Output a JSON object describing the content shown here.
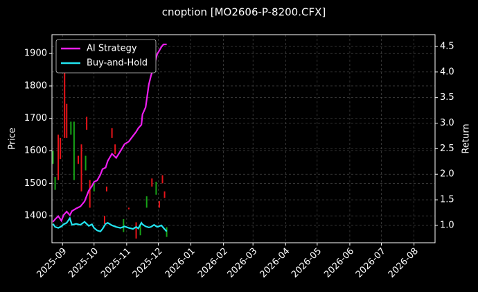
{
  "chart_data": {
    "type": "candlestick",
    "title": "cnoption [MO2606-P-8200.CFX]",
    "ylabel": "Price",
    "y2label": "Return",
    "up_color": "#e8141a",
    "down_color": "#17a317",
    "candles": {
      "x": [
        20323,
        20325,
        20328,
        20330,
        20334,
        20336,
        20340,
        20343,
        20347,
        20350,
        20354,
        20355,
        20358,
        20362,
        20372,
        20374,
        20379,
        20382,
        20390,
        20395,
        20402,
        20406,
        20412,
        20417,
        20421,
        20424,
        20427,
        20429,
        20431
      ],
      "open": [
        1600,
        1520,
        1510,
        1575,
        1640,
        1640,
        1690,
        1690,
        1560,
        1475,
        1585,
        1665,
        1425,
        1500,
        1375,
        1475,
        1640,
        1590,
        1390,
        1420,
        1330,
        1370,
        1460,
        1490,
        1505,
        1425,
        1500,
        1455,
        1365
      ],
      "close": [
        1560,
        1480,
        1650,
        1640,
        1840,
        1745,
        1650,
        1510,
        1585,
        1620,
        1540,
        1705,
        1510,
        1475,
        1400,
        1490,
        1670,
        1620,
        1350,
        1425,
        1380,
        1340,
        1425,
        1515,
        1465,
        1445,
        1525,
        1475,
        1335
      ]
    },
    "series": [
      {
        "name": "AI Strategy",
        "color": "#ee1ef0",
        "axis": "y2",
        "x": [
          20323,
          20325,
          20328,
          20331,
          20333,
          20336,
          20339,
          20341,
          20345,
          20349,
          20353,
          20357,
          20360,
          20362,
          20365,
          20368,
          20370,
          20373,
          20375,
          20379,
          20383,
          20387,
          20391,
          20395,
          20399,
          20402,
          20404,
          20407,
          20408,
          20411,
          20414,
          20416,
          20419,
          20422,
          20426,
          20428,
          20431
        ],
        "values": [
          1.07,
          1.12,
          1.18,
          1.09,
          1.2,
          1.27,
          1.2,
          1.28,
          1.33,
          1.37,
          1.47,
          1.68,
          1.77,
          1.85,
          1.88,
          1.99,
          2.1,
          2.13,
          2.26,
          2.4,
          2.32,
          2.45,
          2.59,
          2.64,
          2.75,
          2.83,
          2.9,
          2.97,
          3.17,
          3.31,
          3.75,
          3.92,
          4.12,
          4.35,
          4.49,
          4.54,
          4.54
        ]
      },
      {
        "name": "Buy-and-Hold",
        "color": "#22e4f0",
        "axis": "y2",
        "x": [
          20323,
          20325,
          20328,
          20331,
          20333,
          20336,
          20339,
          20341,
          20345,
          20349,
          20353,
          20357,
          20360,
          20362,
          20365,
          20368,
          20370,
          20373,
          20375,
          20379,
          20383,
          20387,
          20391,
          20395,
          20399,
          20402,
          20404,
          20407,
          20408,
          20411,
          20414,
          20416,
          20419,
          20422,
          20426,
          20428,
          20431
        ],
        "values": [
          1.03,
          0.97,
          0.95,
          0.98,
          1.02,
          1.05,
          1.14,
          1.01,
          1.03,
          1.01,
          1.07,
          0.99,
          1.02,
          0.95,
          0.9,
          0.88,
          0.93,
          1.03,
          1.05,
          1.0,
          0.97,
          0.95,
          0.98,
          0.95,
          0.93,
          0.97,
          0.94,
          1.05,
          1.02,
          0.98,
          0.96,
          0.97,
          1.01,
          0.97,
          1.0,
          0.95,
          0.88
        ]
      }
    ],
    "xlim": [
      20322,
      20686
    ],
    "xticks": [
      {
        "value": 20332,
        "label": "2025-09"
      },
      {
        "value": 20362,
        "label": "2025-10"
      },
      {
        "value": 20393,
        "label": "2025-11"
      },
      {
        "value": 20423,
        "label": "2025-12"
      },
      {
        "value": 20454,
        "label": "2026-01"
      },
      {
        "value": 20485,
        "label": "2026-02"
      },
      {
        "value": 20513,
        "label": "2026-03"
      },
      {
        "value": 20544,
        "label": "2026-04"
      },
      {
        "value": 20574,
        "label": "2026-05"
      },
      {
        "value": 20605,
        "label": "2026-06"
      },
      {
        "value": 20635,
        "label": "2026-07"
      },
      {
        "value": 20666,
        "label": "2026-08"
      }
    ],
    "ylim": [
      1317,
      1958
    ],
    "yticks": [
      1400,
      1500,
      1600,
      1700,
      1800,
      1900
    ],
    "y2lim": [
      0.66,
      4.73
    ],
    "y2ticks": [
      {
        "value": 1,
        "label": "1.0"
      },
      1.5,
      {
        "value": 2,
        "label": "2.0"
      },
      2.5,
      {
        "value": 3,
        "label": "3.0"
      },
      3.5,
      {
        "value": 4,
        "label": "4.0"
      },
      4.5
    ],
    "grid": true,
    "legend": "upper left"
  }
}
